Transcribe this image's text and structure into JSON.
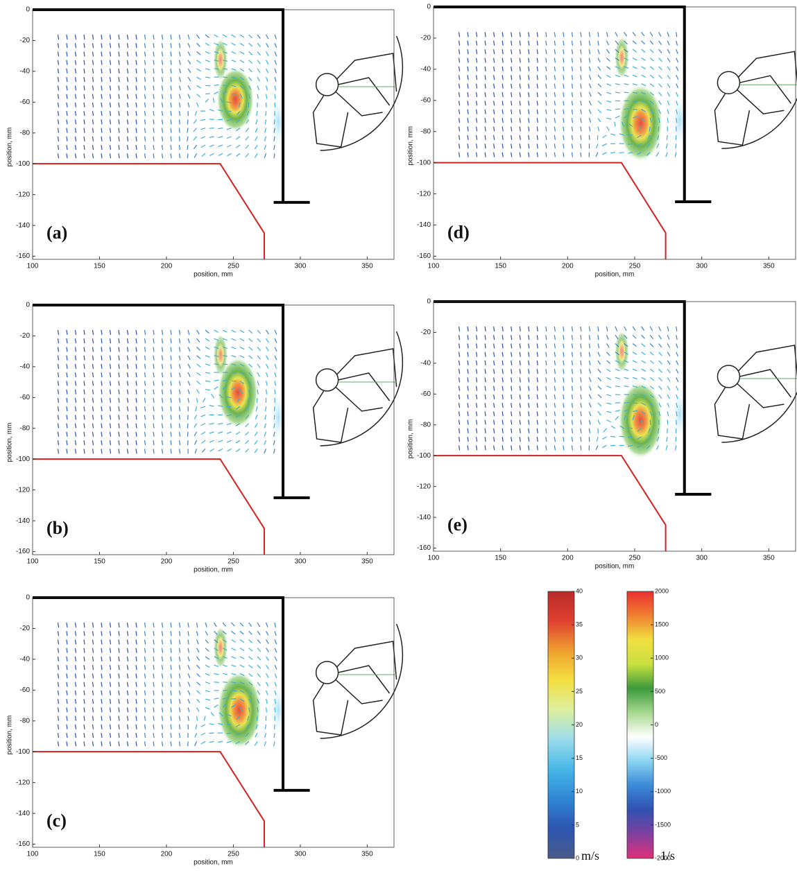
{
  "chart_data": [
    {
      "type": "vector-field",
      "label": "(a)",
      "xlabel": "position, mm",
      "ylabel": "position, mm",
      "xlim": [
        100,
        370
      ],
      "ylim": [
        -162,
        0
      ],
      "xticks": [
        100,
        150,
        200,
        250,
        300,
        350
      ],
      "yticks": [
        0,
        -20,
        -40,
        -60,
        -80,
        -100,
        -120,
        -140,
        -160
      ]
    },
    {
      "type": "vector-field",
      "label": "(b)",
      "xlabel": "position, mm",
      "ylabel": "position, mm",
      "xlim": [
        100,
        370
      ],
      "ylim": [
        -162,
        0
      ],
      "xticks": [
        100,
        150,
        200,
        250,
        300,
        350
      ],
      "yticks": [
        0,
        -20,
        -40,
        -60,
        -80,
        -100,
        -120,
        -140,
        -160
      ]
    },
    {
      "type": "vector-field",
      "label": "(c)",
      "xlabel": "position, mm",
      "ylabel": "position, mm",
      "xlim": [
        100,
        370
      ],
      "ylim": [
        -162,
        0
      ],
      "xticks": [
        100,
        150,
        200,
        250,
        300,
        350
      ],
      "yticks": [
        0,
        -20,
        -40,
        -60,
        -80,
        -100,
        -120,
        -140,
        -160
      ]
    },
    {
      "type": "vector-field",
      "label": "(d)",
      "xlabel": "position, mm",
      "ylabel": "position, mm",
      "xlim": [
        100,
        370
      ],
      "ylim": [
        -162,
        0
      ],
      "xticks": [
        100,
        150,
        200,
        250,
        300,
        350
      ],
      "yticks": [
        0,
        -20,
        -40,
        -60,
        -80,
        -100,
        -120,
        -140,
        -160
      ]
    },
    {
      "type": "vector-field",
      "label": "(e)",
      "xlabel": "position, mm",
      "ylabel": "position, mm",
      "xlim": [
        100,
        370
      ],
      "ylim": [
        -162,
        0
      ],
      "xticks": [
        100,
        150,
        200,
        250,
        300,
        350
      ],
      "yticks": [
        0,
        -20,
        -40,
        -60,
        -80,
        -100,
        -120,
        -140,
        -160
      ]
    },
    {
      "type": "colorbar",
      "unit": "m/s",
      "ylim": [
        0,
        40
      ],
      "yticks": [
        0,
        5,
        10,
        15,
        20,
        25,
        30,
        35,
        40
      ],
      "colors": [
        "#4a5a8a",
        "#2d55b0",
        "#2f86d6",
        "#45b6e6",
        "#9adcec",
        "#dcefa0",
        "#f3e040",
        "#f0a030",
        "#e04030",
        "#b82a2a"
      ]
    },
    {
      "type": "colorbar",
      "unit": "1/s",
      "ylim": [
        -2000,
        2000
      ],
      "yticks": [
        -2000,
        -1500,
        -1000,
        -500,
        0,
        500,
        1000,
        1500,
        2000
      ],
      "colors": [
        "#e0307a",
        "#8040a0",
        "#3050b0",
        "#3a8ad8",
        "#8ad4f0",
        "#ffffff",
        "#a8d890",
        "#3c9a3c",
        "#c8e040",
        "#f0e040",
        "#f08030",
        "#e83030"
      ]
    }
  ]
}
